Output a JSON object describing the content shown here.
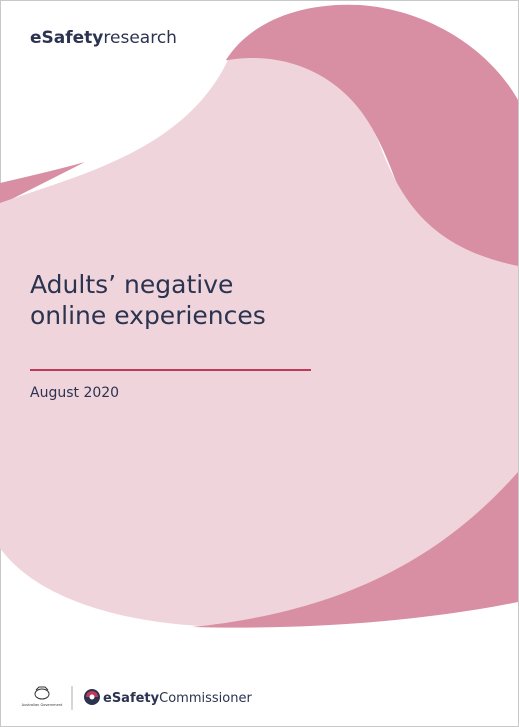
{
  "header": {
    "brand_bold": "eSafety",
    "brand_light": "research"
  },
  "title_lines": [
    "Adults’ negative",
    "online experiences"
  ],
  "date": "August 2020",
  "footer": {
    "government": "Australian Government",
    "logo_bold": "eSafety",
    "logo_light": "Commissioner"
  }
}
